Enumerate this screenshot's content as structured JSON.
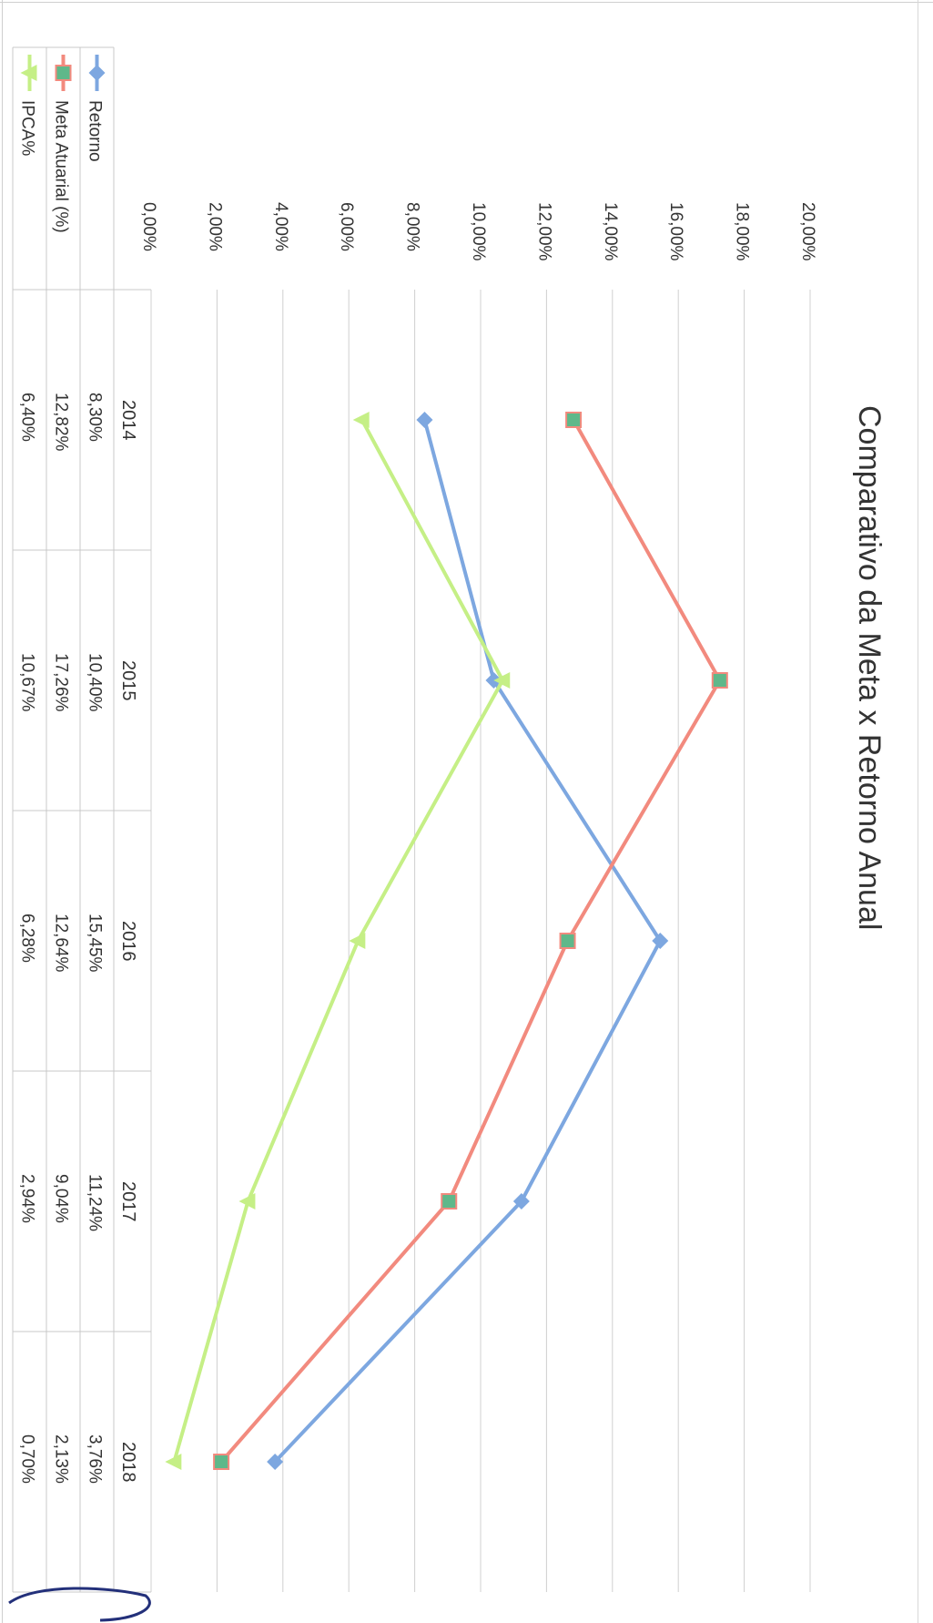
{
  "chart_data": {
    "type": "line",
    "title": "Comparativo da Meta x Retorno Anual",
    "categories": [
      "2014",
      "2015",
      "2016",
      "2017",
      "2018"
    ],
    "series": [
      {
        "name": "Retorno",
        "values": [
          "8,30%",
          "10,40%",
          "15,45%",
          "11,24%",
          "3,76%"
        ],
        "numeric": [
          8.3,
          10.4,
          15.45,
          11.24,
          3.76
        ],
        "color": "#7da7e0",
        "marker": "diamond"
      },
      {
        "name": "Meta Atuarial (%)",
        "values": [
          "12,82%",
          "17,26%",
          "12,64%",
          "9,04%",
          "2,13%"
        ],
        "numeric": [
          12.82,
          17.26,
          12.64,
          9.04,
          2.13
        ],
        "color": "#f28a7e",
        "marker": "square"
      },
      {
        "name": "IPCA%",
        "values": [
          "6,40%",
          "10,67%",
          "6,28%",
          "2,94%",
          "0,70%"
        ],
        "numeric": [
          6.4,
          10.67,
          6.28,
          2.94,
          0.7
        ],
        "color": "#c5ef86",
        "marker": "triangle"
      }
    ],
    "y_ticks": [
      "0,00%",
      "2,00%",
      "4,00%",
      "6,00%",
      "8,00%",
      "10,00%",
      "12,00%",
      "14,00%",
      "16,00%",
      "18,00%",
      "20,00%"
    ],
    "ylim": [
      0,
      20
    ],
    "grid": true,
    "legend": "data-table",
    "orientation": "rotated-90"
  }
}
